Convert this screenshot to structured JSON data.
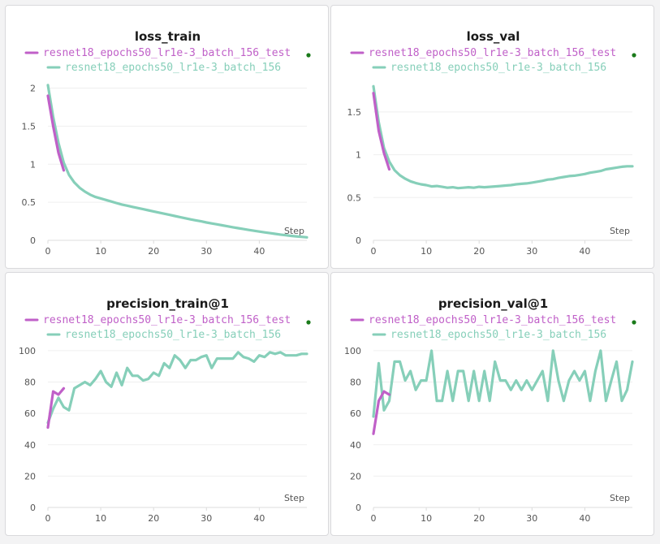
{
  "colors": {
    "train_run": "#86cfb9",
    "test_run": "#c060c8",
    "dot": "#1a7a1a"
  },
  "chart_data": [
    {
      "type": "line",
      "title": "loss_train",
      "xlabel": "Step",
      "xlim": [
        0,
        49
      ],
      "ylim": [
        0,
        2.08
      ],
      "xticks": [
        0,
        10,
        20,
        30,
        40
      ],
      "yticks": [
        0,
        0.5,
        1,
        1.5,
        2
      ],
      "yticklabels": [
        "0",
        "0.5",
        "1",
        "1.5",
        "2"
      ],
      "series": [
        {
          "name": "resnet18_epochs50_lr1e-3_batch_156_test",
          "color": "#c060c8",
          "x": [
            0,
            1,
            2,
            3
          ],
          "y": [
            1.9,
            1.5,
            1.15,
            0.92
          ]
        },
        {
          "name": "resnet18_epochs50_lr1e-3_batch_156",
          "color": "#86cfb9",
          "x": [
            0,
            1,
            2,
            3,
            4,
            5,
            6,
            7,
            8,
            9,
            10,
            11,
            12,
            13,
            14,
            15,
            16,
            17,
            18,
            19,
            20,
            21,
            22,
            23,
            24,
            25,
            26,
            27,
            28,
            29,
            30,
            31,
            32,
            33,
            34,
            35,
            36,
            37,
            38,
            39,
            40,
            41,
            42,
            43,
            44,
            45,
            46,
            47,
            48,
            49
          ],
          "y": [
            2.04,
            1.62,
            1.28,
            1.02,
            0.86,
            0.76,
            0.69,
            0.64,
            0.6,
            0.57,
            0.55,
            0.53,
            0.51,
            0.49,
            0.47,
            0.455,
            0.44,
            0.425,
            0.41,
            0.395,
            0.38,
            0.365,
            0.35,
            0.335,
            0.32,
            0.305,
            0.29,
            0.275,
            0.262,
            0.25,
            0.235,
            0.222,
            0.21,
            0.197,
            0.185,
            0.172,
            0.16,
            0.148,
            0.137,
            0.126,
            0.115,
            0.105,
            0.095,
            0.085,
            0.076,
            0.067,
            0.059,
            0.052,
            0.046,
            0.04
          ]
        }
      ]
    },
    {
      "type": "line",
      "title": "loss_val",
      "xlabel": "Step",
      "xlim": [
        0,
        49
      ],
      "ylim": [
        0,
        1.85
      ],
      "xticks": [
        0,
        10,
        20,
        30,
        40
      ],
      "yticks": [
        0,
        0.5,
        1,
        1.5
      ],
      "yticklabels": [
        "0",
        "0.5",
        "1",
        "1.5"
      ],
      "series": [
        {
          "name": "resnet18_epochs50_lr1e-3_batch_156_test",
          "color": "#c060c8",
          "x": [
            0,
            1,
            2,
            3
          ],
          "y": [
            1.72,
            1.28,
            1.02,
            0.83
          ]
        },
        {
          "name": "resnet18_epochs50_lr1e-3_batch_156",
          "color": "#86cfb9",
          "x": [
            0,
            1,
            2,
            3,
            4,
            5,
            6,
            7,
            8,
            9,
            10,
            11,
            12,
            13,
            14,
            15,
            16,
            17,
            18,
            19,
            20,
            21,
            22,
            23,
            24,
            25,
            26,
            27,
            28,
            29,
            30,
            31,
            32,
            33,
            34,
            35,
            36,
            37,
            38,
            39,
            40,
            41,
            42,
            43,
            44,
            45,
            46,
            47,
            48,
            49
          ],
          "y": [
            1.8,
            1.38,
            1.08,
            0.92,
            0.82,
            0.76,
            0.72,
            0.69,
            0.67,
            0.655,
            0.645,
            0.63,
            0.635,
            0.625,
            0.615,
            0.62,
            0.61,
            0.615,
            0.62,
            0.615,
            0.625,
            0.62,
            0.625,
            0.63,
            0.635,
            0.64,
            0.645,
            0.655,
            0.66,
            0.665,
            0.675,
            0.685,
            0.695,
            0.71,
            0.715,
            0.73,
            0.74,
            0.75,
            0.755,
            0.765,
            0.775,
            0.79,
            0.8,
            0.81,
            0.83,
            0.84,
            0.85,
            0.86,
            0.865,
            0.865
          ]
        }
      ]
    },
    {
      "type": "line",
      "title": "precision_train@1",
      "xlabel": "Step",
      "xlim": [
        0,
        49
      ],
      "ylim": [
        0,
        101
      ],
      "xticks": [
        0,
        10,
        20,
        30,
        40
      ],
      "yticks": [
        0,
        20,
        40,
        60,
        80,
        100
      ],
      "yticklabels": [
        "0",
        "20",
        "40",
        "60",
        "80",
        "100"
      ],
      "series": [
        {
          "name": "resnet18_epochs50_lr1e-3_batch_156_test",
          "color": "#c060c8",
          "x": [
            0,
            1,
            2,
            3
          ],
          "y": [
            51,
            74,
            72,
            76
          ]
        },
        {
          "name": "resnet18_epochs50_lr1e-3_batch_156",
          "color": "#86cfb9",
          "x": [
            0,
            1,
            2,
            3,
            4,
            5,
            6,
            7,
            8,
            9,
            10,
            11,
            12,
            13,
            14,
            15,
            16,
            17,
            18,
            19,
            20,
            21,
            22,
            23,
            24,
            25,
            26,
            27,
            28,
            29,
            30,
            31,
            32,
            33,
            34,
            35,
            36,
            37,
            38,
            39,
            40,
            41,
            42,
            43,
            44,
            45,
            46,
            47,
            48,
            49
          ],
          "y": [
            54,
            63,
            70,
            64,
            62,
            76,
            78,
            80,
            78,
            82,
            87,
            80,
            77,
            86,
            78,
            89,
            84,
            84,
            81,
            82,
            86,
            84,
            92,
            89,
            97,
            94,
            89,
            94,
            94,
            96,
            97,
            89,
            95,
            95,
            95,
            95,
            99,
            96,
            95,
            93,
            97,
            96,
            99,
            98,
            99,
            97,
            97,
            97,
            98,
            98
          ]
        }
      ]
    },
    {
      "type": "line",
      "title": "precision_val@1",
      "xlabel": "Step",
      "xlim": [
        0,
        49
      ],
      "ylim": [
        0,
        101
      ],
      "xticks": [
        0,
        10,
        20,
        30,
        40
      ],
      "yticks": [
        0,
        20,
        40,
        60,
        80,
        100
      ],
      "yticklabels": [
        "0",
        "20",
        "40",
        "60",
        "80",
        "100"
      ],
      "series": [
        {
          "name": "resnet18_epochs50_lr1e-3_batch_156_test",
          "color": "#c060c8",
          "x": [
            0,
            1,
            2,
            3
          ],
          "y": [
            47,
            68,
            74,
            72
          ]
        },
        {
          "name": "resnet18_epochs50_lr1e-3_batch_156",
          "color": "#86cfb9",
          "x": [
            0,
            1,
            2,
            3,
            4,
            5,
            6,
            7,
            8,
            9,
            10,
            11,
            12,
            13,
            14,
            15,
            16,
            17,
            18,
            19,
            20,
            21,
            22,
            23,
            24,
            25,
            26,
            27,
            28,
            29,
            30,
            31,
            32,
            33,
            34,
            35,
            36,
            37,
            38,
            39,
            40,
            41,
            42,
            43,
            44,
            45,
            46,
            47,
            48,
            49
          ],
          "y": [
            58,
            92,
            62,
            68,
            93,
            93,
            81,
            87,
            75,
            81,
            81,
            100,
            68,
            68,
            87,
            68,
            87,
            87,
            68,
            87,
            68,
            87,
            68,
            93,
            81,
            81,
            75,
            81,
            75,
            81,
            75,
            81,
            87,
            68,
            100,
            81,
            68,
            81,
            87,
            81,
            87,
            68,
            87,
            100,
            68,
            81,
            93,
            68,
            75,
            93
          ]
        }
      ]
    }
  ]
}
